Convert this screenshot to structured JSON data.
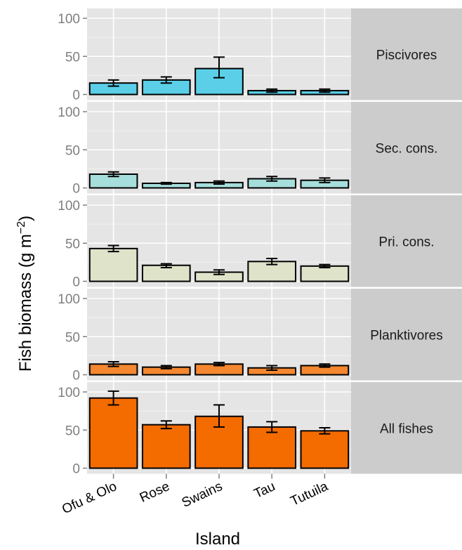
{
  "chart_data": {
    "type": "bar",
    "xlabel": "Island",
    "ylabel": "Fish biomass (g m",
    "ylabel_sup": "−2",
    "ylabel_close": ")",
    "categories": [
      "Ofu & Olo",
      "Rose",
      "Swains",
      "Tau",
      "Tutuila"
    ],
    "ylim": [
      0,
      100
    ],
    "yticks": [
      0,
      50,
      100
    ],
    "grid": true,
    "facets": [
      {
        "name": "Piscivores",
        "color": "#5bcfe8",
        "values": [
          15,
          19,
          34,
          5,
          5
        ],
        "error_low": [
          11,
          15,
          22,
          3,
          3
        ],
        "error_high": [
          19,
          23,
          49,
          7,
          7
        ]
      },
      {
        "name": "Sec. cons.",
        "color": "#a6dedb",
        "values": [
          18,
          6,
          7,
          12,
          10
        ],
        "error_low": [
          15,
          5,
          5,
          9,
          7
        ],
        "error_high": [
          21,
          7,
          9,
          15,
          13
        ]
      },
      {
        "name": "Pri. cons.",
        "color": "#dfe3c9",
        "values": [
          43,
          21,
          12,
          26,
          20
        ],
        "error_low": [
          39,
          18,
          9,
          22,
          18
        ],
        "error_high": [
          47,
          23,
          15,
          30,
          22
        ]
      },
      {
        "name": "Planktivores",
        "color": "#f4872f",
        "values": [
          14,
          10,
          14,
          9,
          12
        ],
        "error_low": [
          11,
          8,
          12,
          6,
          10
        ],
        "error_high": [
          17,
          12,
          16,
          12,
          14
        ]
      },
      {
        "name": "All fishes",
        "color": "#f46b00",
        "values": [
          92,
          57,
          68,
          54,
          49
        ],
        "error_low": [
          83,
          52,
          54,
          47,
          45
        ],
        "error_high": [
          101,
          62,
          83,
          61,
          53
        ]
      }
    ]
  }
}
